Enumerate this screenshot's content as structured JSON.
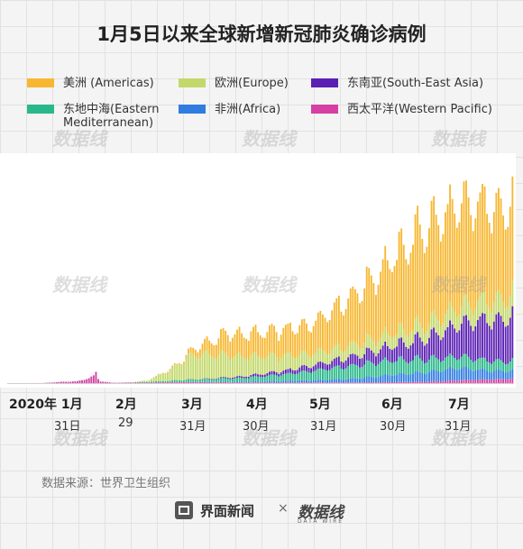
{
  "title": "1月5日以来全球新增新冠肺炎确诊病例",
  "legend": [
    {
      "label": "美洲 (Americas)",
      "color": "#f7b731"
    },
    {
      "label": "欧洲(Europe)",
      "color": "#c3d86a"
    },
    {
      "label": "东南亚(South-East Asia)",
      "color": "#5a1fb3"
    },
    {
      "label": "东地中海(Eastern Mediterranean)",
      "color": "#2ab88a"
    },
    {
      "label": "非洲(Africa)",
      "color": "#2f7de1"
    },
    {
      "label": "西太平洋(Western Pacific)",
      "color": "#d63fa3"
    }
  ],
  "x_axis": {
    "months": [
      "2020年 1月",
      "2月",
      "3月",
      "4月",
      "5月",
      "6月",
      "7月"
    ],
    "days": [
      "31日",
      "29",
      "31月",
      "30月",
      "31月",
      "30月",
      "31月"
    ]
  },
  "source": "数据来源：世界卫生组织",
  "footer": {
    "logo_text": "界面新闻",
    "separator": "×",
    "brand": "数据线",
    "brand_sub": "DATA WIRE"
  },
  "watermark": "数据线",
  "chart_data": {
    "type": "bar",
    "stacked": true,
    "title": "1月5日以来全球新增新冠肺炎确诊病例",
    "x_start": "2020-01-05",
    "x_end": "2020-08-10",
    "series_order": [
      "Western Pacific",
      "Africa",
      "Eastern Mediterranean",
      "South-East Asia",
      "Europe",
      "Americas"
    ],
    "series": [
      {
        "name": "美洲 (Americas)",
        "keypoints": [
          [
            0,
            0
          ],
          [
            55,
            0
          ],
          [
            65,
            200
          ],
          [
            75,
            2000
          ],
          [
            85,
            15000
          ],
          [
            95,
            30000
          ],
          [
            110,
            33000
          ],
          [
            130,
            40000
          ],
          [
            150,
            70000
          ],
          [
            165,
            100000
          ],
          [
            180,
            135000
          ],
          [
            195,
            140000
          ],
          [
            210,
            130000
          ],
          [
            218,
            125000
          ]
        ]
      },
      {
        "name": "欧洲(Europe)",
        "keypoints": [
          [
            0,
            0
          ],
          [
            50,
            0
          ],
          [
            60,
            1500
          ],
          [
            70,
            15000
          ],
          [
            80,
            34000
          ],
          [
            90,
            33000
          ],
          [
            100,
            28000
          ],
          [
            115,
            22000
          ],
          [
            130,
            17000
          ],
          [
            150,
            16000
          ],
          [
            170,
            18000
          ],
          [
            190,
            22000
          ],
          [
            210,
            28000
          ],
          [
            218,
            30000
          ]
        ]
      },
      {
        "name": "东南亚(South-East Asia)",
        "keypoints": [
          [
            0,
            0
          ],
          [
            70,
            0
          ],
          [
            85,
            500
          ],
          [
            100,
            2000
          ],
          [
            120,
            5000
          ],
          [
            140,
            10000
          ],
          [
            160,
            17000
          ],
          [
            175,
            25000
          ],
          [
            190,
            38000
          ],
          [
            205,
            55000
          ],
          [
            218,
            62000
          ]
        ]
      },
      {
        "name": "东地中海(Eastern Mediterranean)",
        "keypoints": [
          [
            0,
            0
          ],
          [
            50,
            0
          ],
          [
            65,
            1500
          ],
          [
            80,
            3500
          ],
          [
            100,
            5000
          ],
          [
            120,
            9000
          ],
          [
            140,
            16000
          ],
          [
            160,
            20000
          ],
          [
            175,
            19000
          ],
          [
            190,
            16000
          ],
          [
            205,
            14000
          ],
          [
            218,
            13000
          ]
        ]
      },
      {
        "name": "非洲(Africa)",
        "keypoints": [
          [
            0,
            0
          ],
          [
            70,
            0
          ],
          [
            90,
            400
          ],
          [
            110,
            1500
          ],
          [
            130,
            3000
          ],
          [
            150,
            5500
          ],
          [
            165,
            10000
          ],
          [
            180,
            13000
          ],
          [
            195,
            17000
          ],
          [
            205,
            13000
          ],
          [
            218,
            11000
          ]
        ]
      },
      {
        "name": "西太平洋(Western Pacific)",
        "keypoints": [
          [
            0,
            0
          ],
          [
            15,
            100
          ],
          [
            25,
            2000
          ],
          [
            30,
            2500
          ],
          [
            38,
            10000
          ],
          [
            40,
            2500
          ],
          [
            45,
            500
          ],
          [
            60,
            800
          ],
          [
            75,
            1500
          ],
          [
            90,
            1200
          ],
          [
            110,
            800
          ],
          [
            130,
            900
          ],
          [
            150,
            900
          ],
          [
            170,
            1500
          ],
          [
            185,
            2500
          ],
          [
            200,
            4500
          ],
          [
            218,
            6000
          ]
        ]
      }
    ],
    "spike": {
      "day": 38,
      "value": 15000
    },
    "ylim": [
      0,
      300000
    ],
    "xlabel": "",
    "ylabel": "",
    "grid": false
  }
}
